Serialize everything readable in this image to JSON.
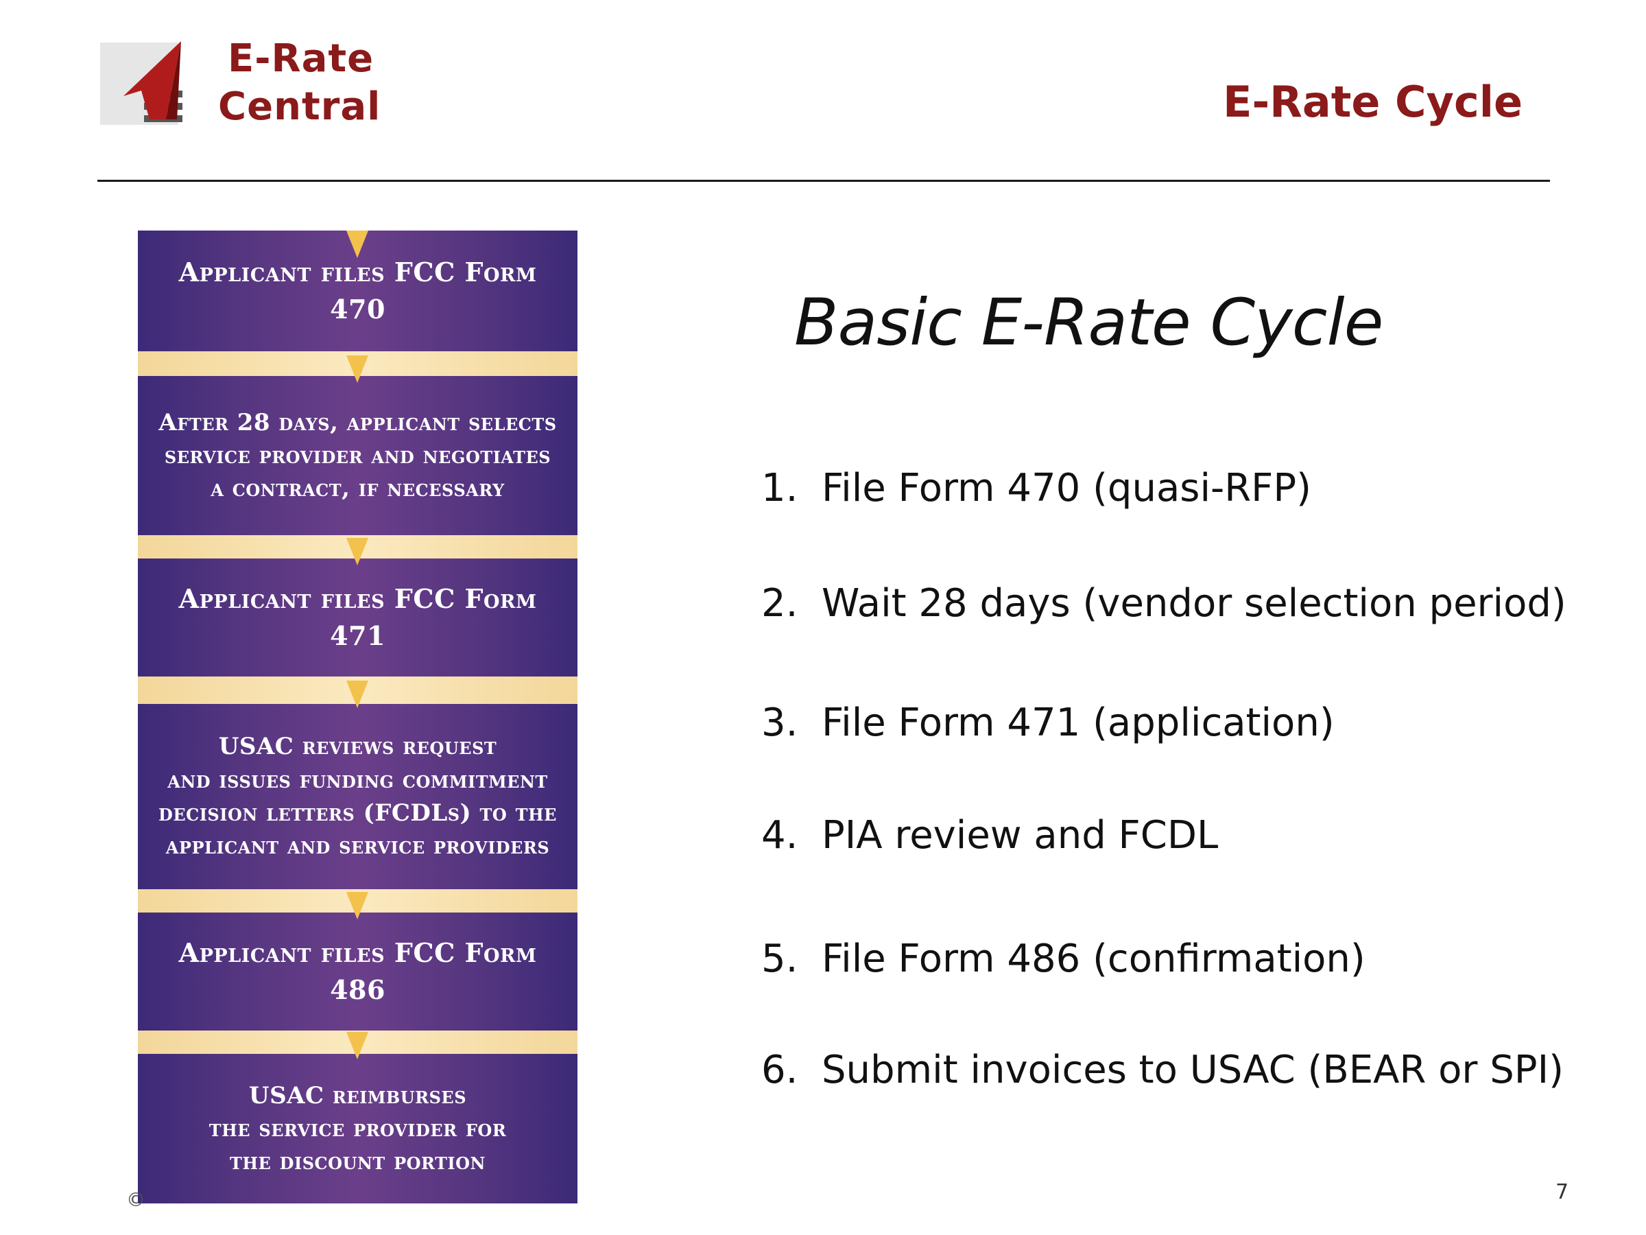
{
  "header": {
    "brand_line1": "E-Rate",
    "brand_line2": "Central",
    "title": "E-Rate Cycle"
  },
  "flowchart": {
    "steps": [
      {
        "lines": [
          "Applicant files FCC Form 470"
        ]
      },
      {
        "lines": [
          "After 28 days, applicant selects",
          "service provider and negotiates",
          "a contract, if necessary"
        ]
      },
      {
        "lines": [
          "Applicant files FCC Form 471"
        ]
      },
      {
        "lines": [
          "USAC reviews request",
          "and issues funding commitment",
          "decision letters (FCDLs) to the",
          "applicant and service providers"
        ]
      },
      {
        "lines": [
          "Applicant files FCC Form 486"
        ]
      },
      {
        "lines": [
          "USAC reimburses",
          "the service provider for",
          "the discount portion"
        ]
      }
    ]
  },
  "main": {
    "subtitle": "Basic E-Rate Cycle",
    "items": [
      {
        "num": "1.",
        "text": "File Form 470  (quasi-RFP)"
      },
      {
        "num": "2.",
        "text": "Wait 28 days  (vendor selection period)"
      },
      {
        "num": "3.",
        "text": "File Form 471  (application)"
      },
      {
        "num": "4.",
        "text": "PIA review and FCDL"
      },
      {
        "num": "5.",
        "text": "File Form 486  (confirmation)"
      },
      {
        "num": "6.",
        "text": "Submit invoices to USAC (BEAR or SPI)"
      }
    ]
  },
  "footer": {
    "copyright_symbol": "©",
    "page_number": "7"
  },
  "colors": {
    "brand_red": "#8b1a1a",
    "flow_purple": "#54357f",
    "flow_band": "#f3d79a",
    "arrow_gold": "#f2c24c"
  }
}
